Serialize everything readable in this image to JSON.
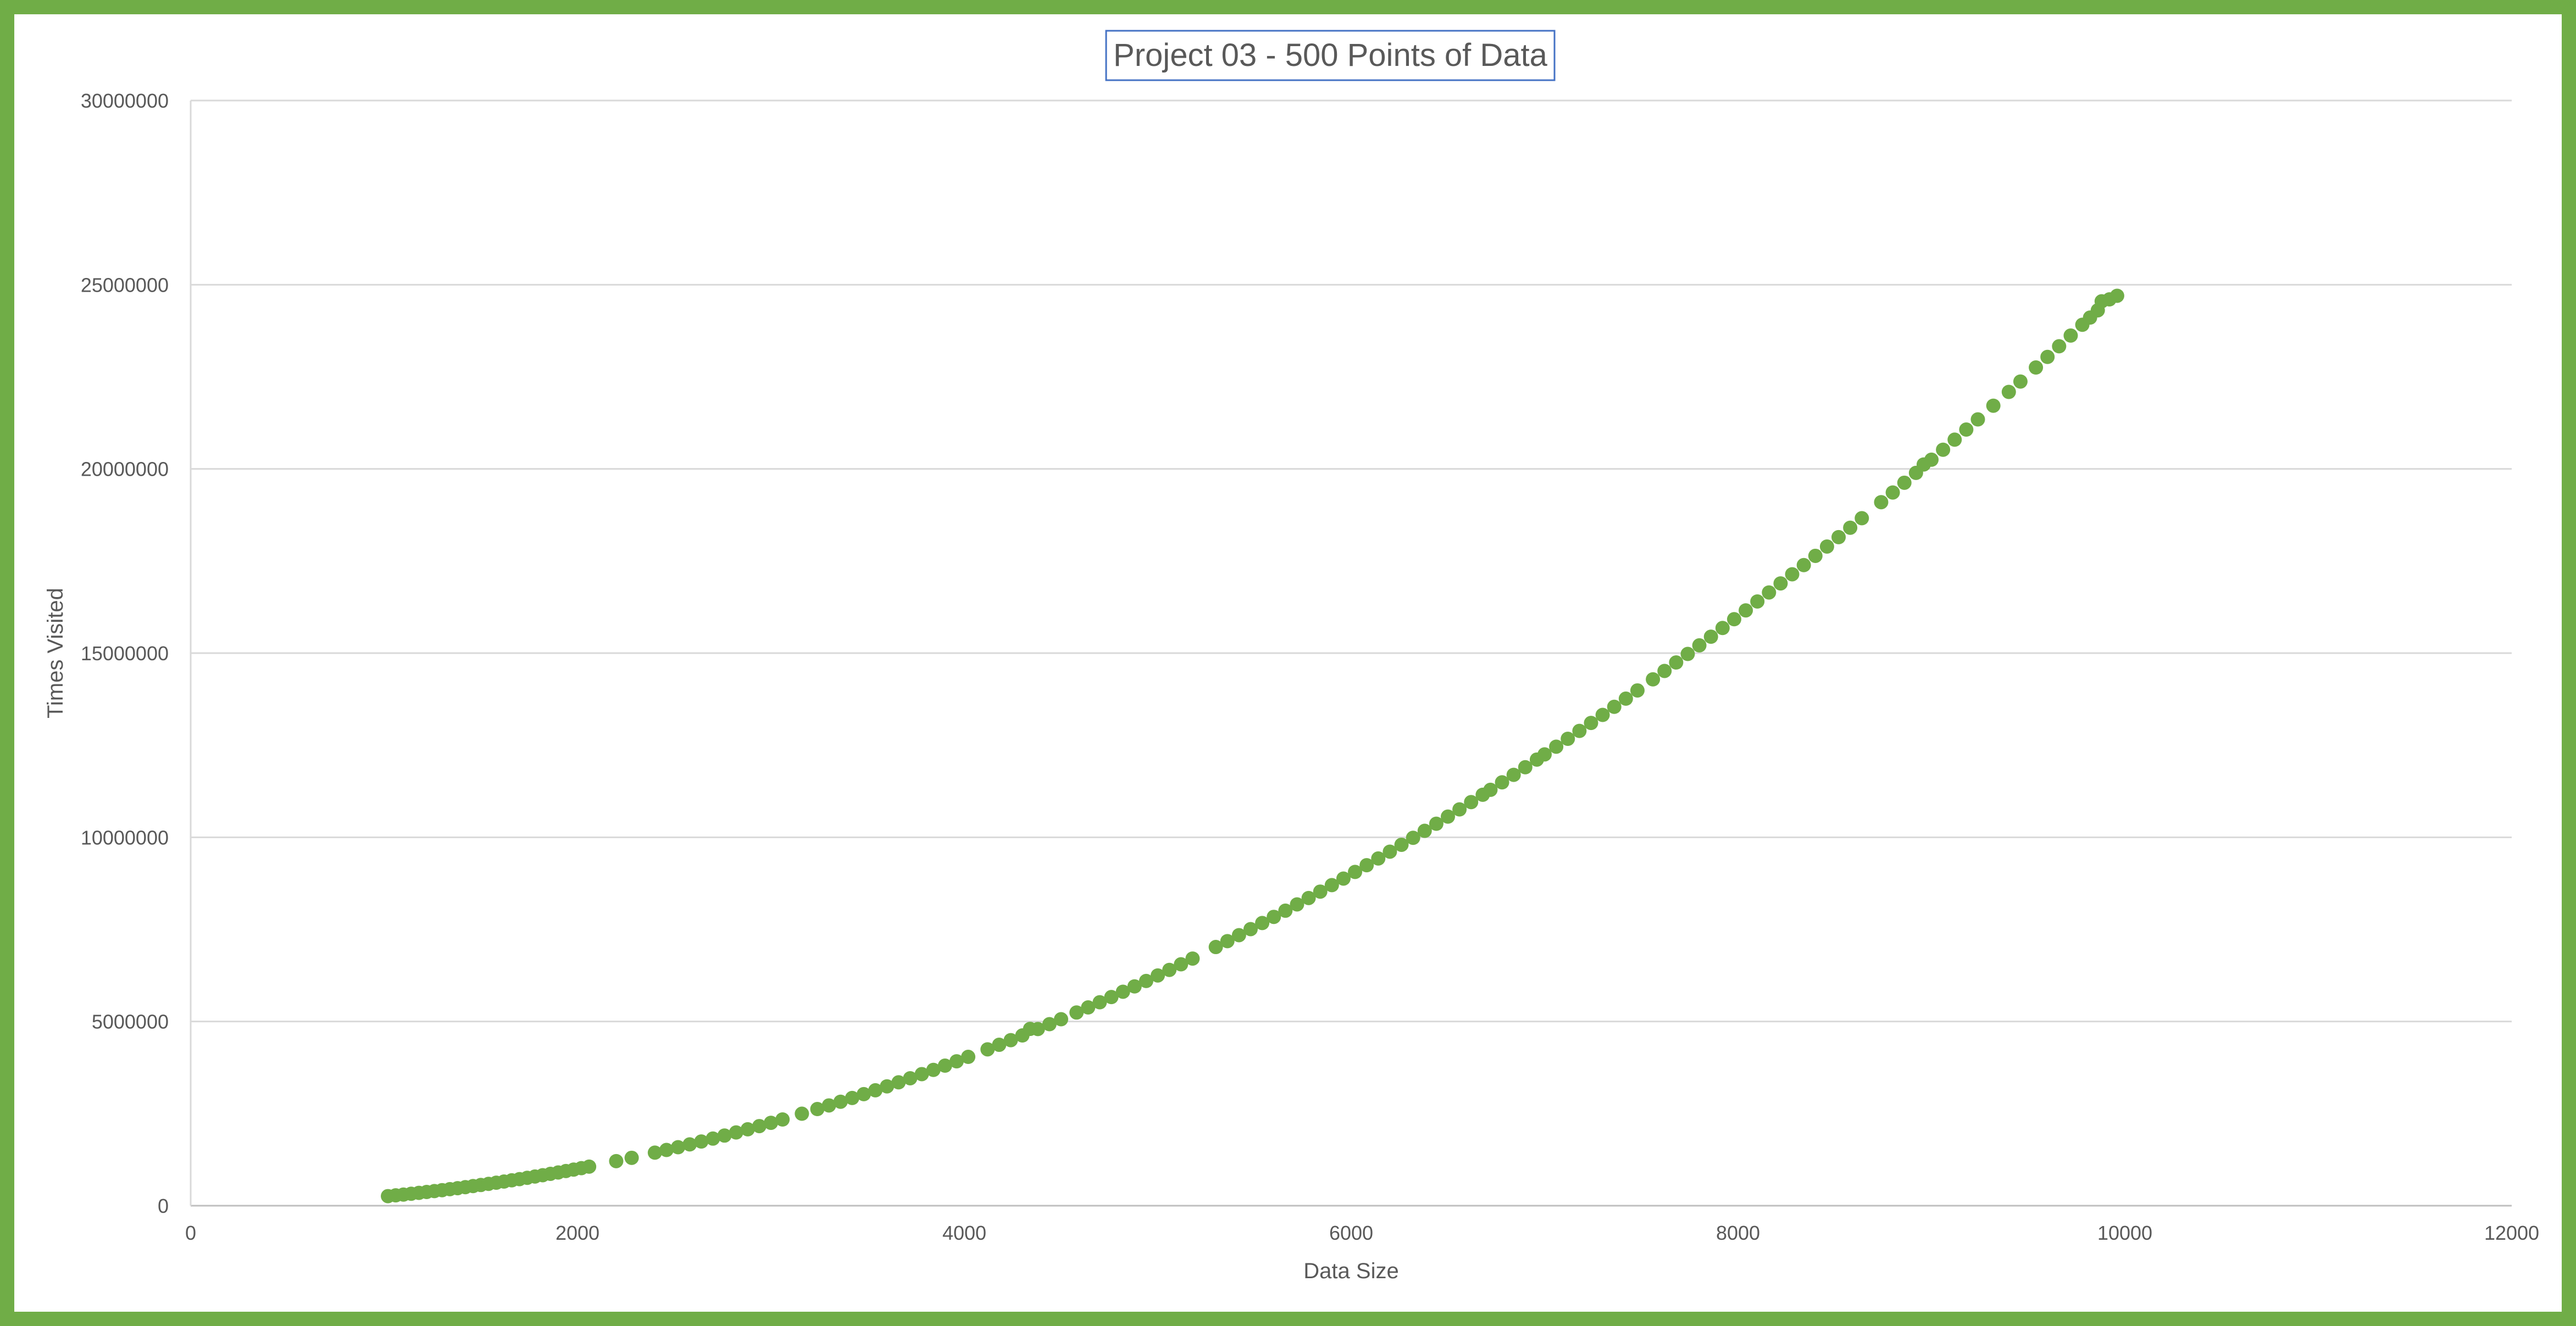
{
  "chart_data": {
    "type": "scatter",
    "title": "Project 03 - 500 Points of Data",
    "xlabel": "Data Size",
    "ylabel": "Times Visited",
    "xlim": [
      0,
      12000
    ],
    "ylim": [
      0,
      30000000
    ],
    "x_ticks": [
      "0",
      "2000",
      "4000",
      "6000",
      "8000",
      "10000",
      "12000"
    ],
    "y_ticks": [
      "0",
      "5000000",
      "10000000",
      "15000000",
      "20000000",
      "25000000",
      "30000000"
    ],
    "grid": "horizontal",
    "legend": "none",
    "marker_color": "#70ad47",
    "frame_color": "#70ad47",
    "title_border_color": "#4472c4",
    "series": [
      {
        "points": [
          [
            1020,
            260000
          ],
          [
            1060,
            281000
          ],
          [
            1100,
            302000
          ],
          [
            1140,
            325000
          ],
          [
            1180,
            348000
          ],
          [
            1220,
            372000
          ],
          [
            1260,
            397000
          ],
          [
            1300,
            422000
          ],
          [
            1340,
            449000
          ],
          [
            1380,
            476000
          ],
          [
            1420,
            504000
          ],
          [
            1460,
            533000
          ],
          [
            1500,
            562000
          ],
          [
            1540,
            593000
          ],
          [
            1580,
            624000
          ],
          [
            1620,
            656000
          ],
          [
            1660,
            689000
          ],
          [
            1700,
            722000
          ],
          [
            1740,
            757000
          ],
          [
            1780,
            792000
          ],
          [
            1820,
            828000
          ],
          [
            1860,
            865000
          ],
          [
            1900,
            902000
          ],
          [
            1940,
            941000
          ],
          [
            1980,
            980000
          ],
          [
            2020,
            1020000
          ],
          [
            2060,
            1061000
          ],
          [
            2200,
            1210000
          ],
          [
            2280,
            1300000
          ],
          [
            2400,
            1440000
          ],
          [
            2460,
            1513000
          ],
          [
            2520,
            1588000
          ],
          [
            2580,
            1664000
          ],
          [
            2640,
            1742000
          ],
          [
            2700,
            1822000
          ],
          [
            2760,
            1904000
          ],
          [
            2820,
            1988000
          ],
          [
            2880,
            2074000
          ],
          [
            2940,
            2161000
          ],
          [
            3000,
            2250000
          ],
          [
            3060,
            2341000
          ],
          [
            3160,
            2497000
          ],
          [
            3240,
            2624000
          ],
          [
            3300,
            2722000
          ],
          [
            3360,
            2822000
          ],
          [
            3420,
            2924000
          ],
          [
            3480,
            3028000
          ],
          [
            3540,
            3133000
          ],
          [
            3600,
            3240000
          ],
          [
            3660,
            3349000
          ],
          [
            3720,
            3460000
          ],
          [
            3780,
            3572000
          ],
          [
            3840,
            3686000
          ],
          [
            3900,
            3802000
          ],
          [
            3960,
            3920000
          ],
          [
            4020,
            4040000
          ],
          [
            4120,
            4244000
          ],
          [
            4180,
            4368000
          ],
          [
            4240,
            4494000
          ],
          [
            4300,
            4622000
          ],
          [
            4340,
            4800000
          ],
          [
            4380,
            4796000
          ],
          [
            4440,
            4928000
          ],
          [
            4500,
            5062000
          ],
          [
            4580,
            5244000
          ],
          [
            4640,
            5382000
          ],
          [
            4700,
            5522000
          ],
          [
            4760,
            5664000
          ],
          [
            4820,
            5808000
          ],
          [
            4880,
            5953000
          ],
          [
            4940,
            6100000
          ],
          [
            5000,
            6250000
          ],
          [
            5060,
            6401000
          ],
          [
            5120,
            6553000
          ],
          [
            5180,
            6708000
          ],
          [
            5300,
            7022000
          ],
          [
            5360,
            7182000
          ],
          [
            5420,
            7344000
          ],
          [
            5480,
            7508000
          ],
          [
            5540,
            7673000
          ],
          [
            5600,
            7840000
          ],
          [
            5660,
            8008000
          ],
          [
            5720,
            8179000
          ],
          [
            5780,
            8352000
          ],
          [
            5840,
            8526000
          ],
          [
            5900,
            8702000
          ],
          [
            5960,
            8880000
          ],
          [
            6020,
            9060000
          ],
          [
            6080,
            9242000
          ],
          [
            6140,
            9425000
          ],
          [
            6200,
            9610000
          ],
          [
            6260,
            9797000
          ],
          [
            6320,
            9986000
          ],
          [
            6380,
            10176000
          ],
          [
            6440,
            10368000
          ],
          [
            6500,
            10562000
          ],
          [
            6560,
            10758000
          ],
          [
            6620,
            10955000
          ],
          [
            6680,
            11155000
          ],
          [
            6720,
            11289000
          ],
          [
            6780,
            11492000
          ],
          [
            6840,
            11696000
          ],
          [
            6900,
            11902000
          ],
          [
            6960,
            12110000
          ],
          [
            7000,
            12250000
          ],
          [
            7060,
            12460000
          ],
          [
            7120,
            12674000
          ],
          [
            7180,
            12888000
          ],
          [
            7240,
            13104000
          ],
          [
            7300,
            13322000
          ],
          [
            7360,
            13542000
          ],
          [
            7420,
            13764000
          ],
          [
            7480,
            13987000
          ],
          [
            7560,
            14288000
          ],
          [
            7620,
            14516000
          ],
          [
            7680,
            14746000
          ],
          [
            7740,
            14977000
          ],
          [
            7800,
            15210000
          ],
          [
            7860,
            15445000
          ],
          [
            7920,
            15682000
          ],
          [
            7980,
            15920000
          ],
          [
            8040,
            16160000
          ],
          [
            8100,
            16402000
          ],
          [
            8160,
            16646000
          ],
          [
            8220,
            16892000
          ],
          [
            8280,
            17140000
          ],
          [
            8340,
            17389000
          ],
          [
            8400,
            17640000
          ],
          [
            8460,
            17893000
          ],
          [
            8520,
            18148000
          ],
          [
            8580,
            18404000
          ],
          [
            8640,
            18662000
          ],
          [
            8740,
            19097000
          ],
          [
            8800,
            19360000
          ],
          [
            8860,
            19625000
          ],
          [
            8920,
            19892000
          ],
          [
            8960,
            20120000
          ],
          [
            9000,
            20250000
          ],
          [
            9060,
            20521000
          ],
          [
            9120,
            20794000
          ],
          [
            9180,
            21068000
          ],
          [
            9240,
            21344000
          ],
          [
            9320,
            21716000
          ],
          [
            9400,
            22090000
          ],
          [
            9460,
            22372000
          ],
          [
            9540,
            22753000
          ],
          [
            9600,
            23040000
          ],
          [
            9660,
            23329000
          ],
          [
            9720,
            23620000
          ],
          [
            9780,
            23912000
          ],
          [
            9820,
            24108000
          ],
          [
            9860,
            24305000
          ],
          [
            9880,
            24550000
          ],
          [
            9920,
            24602000
          ],
          [
            9960,
            24700000
          ]
        ]
      }
    ]
  }
}
